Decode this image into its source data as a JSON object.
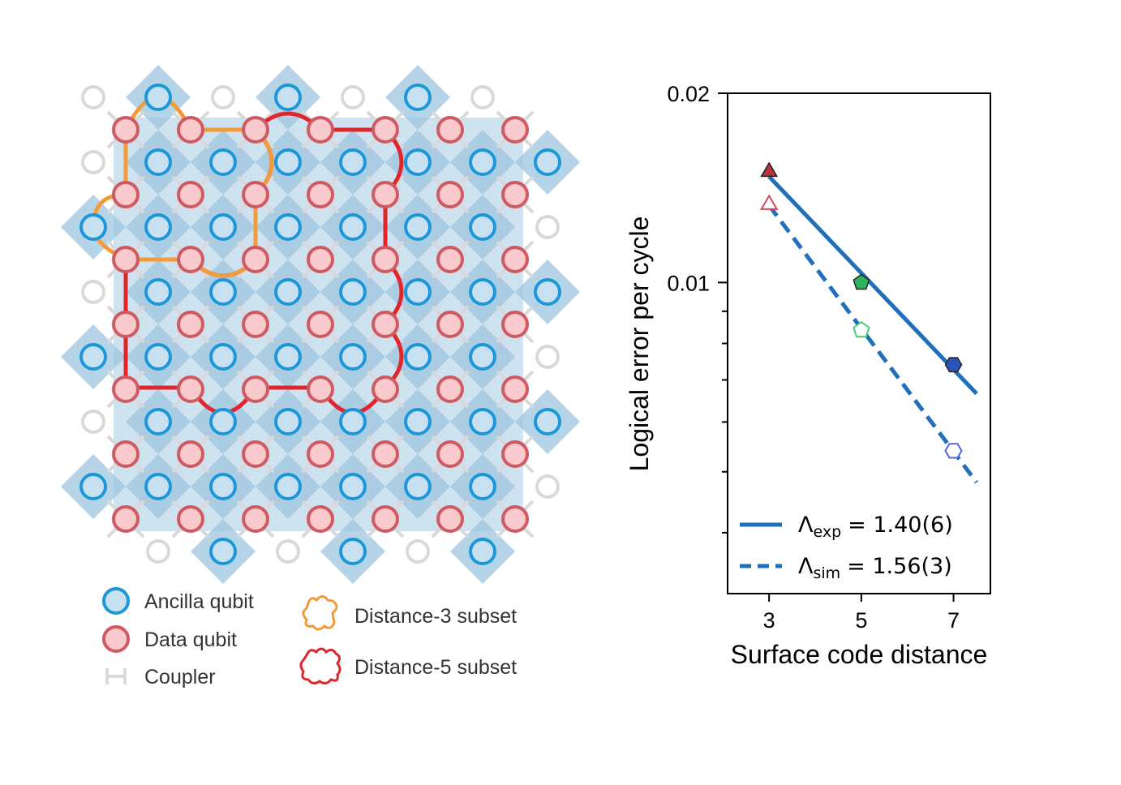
{
  "layout_panel": {
    "legend": {
      "ancilla": "Ancilla qubit",
      "data": "Data qubit",
      "coupler": "Coupler",
      "d3": "Distance-3 subset",
      "d5": "Distance-5 subset"
    },
    "colors": {
      "ancilla_fill": "#c6e2f1",
      "ancilla_stroke": "#1f97d6",
      "data_fill": "#f9c9cc",
      "data_stroke": "#d05a63",
      "coupler": "#d9d9d9",
      "d3_outline": "#f39a3a",
      "d5_outline": "#e0262d",
      "plaquette_dark": "#9ec5e0",
      "plaquette_light": "#cfe2ef"
    }
  },
  "chart_data": {
    "type": "scatter",
    "xlabel": "Surface code distance",
    "ylabel": "Logical error per cycle",
    "x_ticks": [
      "3",
      "5",
      "7"
    ],
    "y_tick_labels": [
      "0.02",
      "0.01"
    ],
    "y_scale": "log",
    "ylim": [
      0.0032,
      0.02
    ],
    "xlim": [
      2.1,
      7.8
    ],
    "series": [
      {
        "name": "experiment",
        "line_label": "Λexp = 1.40(6)",
        "lambda_sub": "exp",
        "lambda_val": "= 1.40(6)",
        "line_style": "solid",
        "x": [
          3,
          5,
          7
        ],
        "y": [
          0.015,
          0.01,
          0.0074
        ],
        "markers": [
          "triangle",
          "pentagon",
          "hexagon"
        ],
        "marker_colors": [
          "#b8343b",
          "#2db35c",
          "#2f54b9"
        ],
        "filled": true
      },
      {
        "name": "simulation",
        "line_label": "Λsim = 1.56(3)",
        "lambda_sub": "sim",
        "lambda_val": "= 1.56(3)",
        "line_style": "dashed",
        "x": [
          3,
          5,
          7
        ],
        "y": [
          0.0133,
          0.0084,
          0.0054
        ],
        "markers": [
          "triangle",
          "pentagon",
          "hexagon"
        ],
        "marker_colors": [
          "#d9485a",
          "#4dca78",
          "#5566d6"
        ],
        "filled": false
      }
    ],
    "line_color": "#1f6fba",
    "legend_position": "lower-left"
  }
}
